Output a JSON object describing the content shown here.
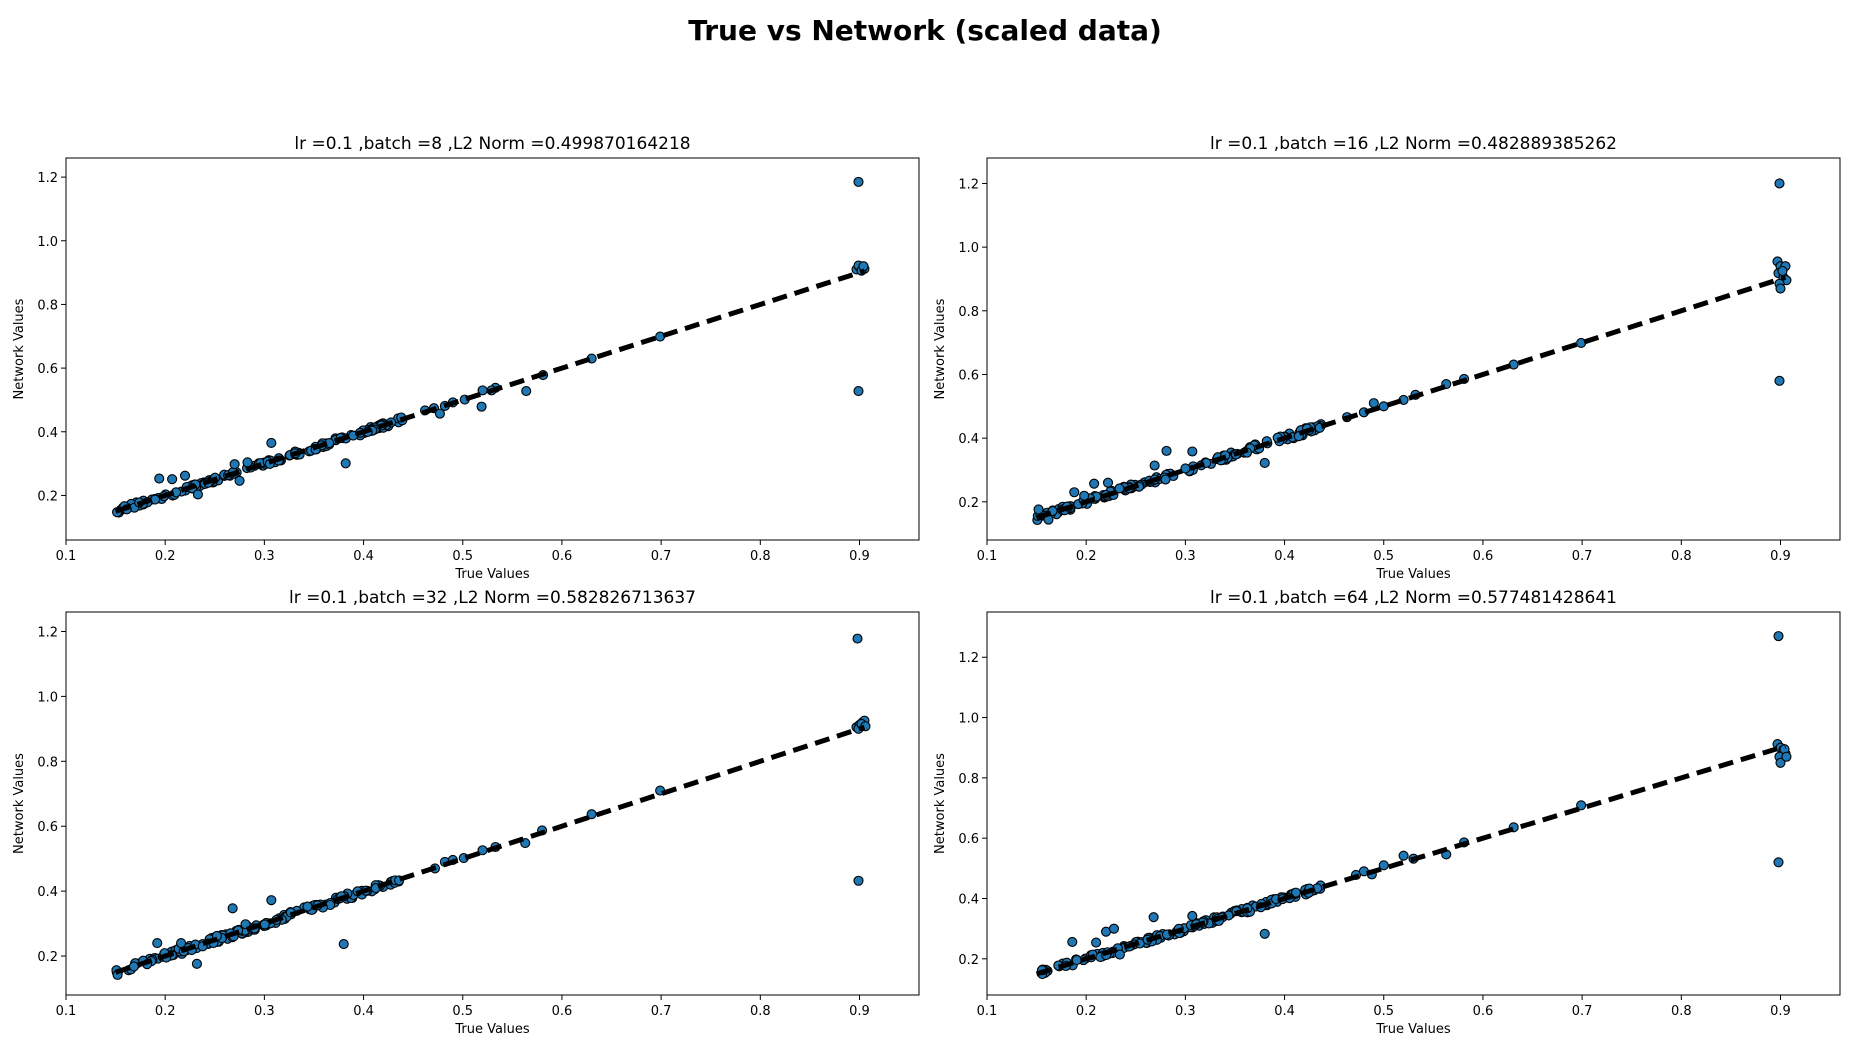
{
  "figure": {
    "suptitle": "True vs Network (scaled data)"
  },
  "chart_data": [
    {
      "type": "scatter",
      "title": "lr =0.1 ,batch =8 ,L2 Norm =0.499870164218",
      "xlabel": "True Values",
      "ylabel": "Network Values",
      "xlim": [
        0.1,
        0.96
      ],
      "ylim": [
        0.06,
        1.26
      ],
      "xticks": [
        "0.1",
        "0.2",
        "0.3",
        "0.4",
        "0.5",
        "0.6",
        "0.7",
        "0.8",
        "0.9"
      ],
      "yticks": [
        "0.2",
        "0.4",
        "0.6",
        "0.8",
        "1.0",
        "1.2"
      ],
      "reference_line": {
        "style": "dashed",
        "color": "#000000",
        "x": [
          0.15,
          0.905
        ],
        "y": [
          0.15,
          0.905
        ]
      },
      "marker_color": "#1f77b4",
      "outliers": [
        {
          "x": 0.899,
          "y": 1.185
        },
        {
          "x": 0.899,
          "y": 0.528
        },
        {
          "x": 0.382,
          "y": 0.301
        },
        {
          "x": 0.194,
          "y": 0.253
        },
        {
          "x": 0.207,
          "y": 0.251
        },
        {
          "x": 0.22,
          "y": 0.262
        },
        {
          "x": 0.233,
          "y": 0.203
        },
        {
          "x": 0.275,
          "y": 0.246
        },
        {
          "x": 0.307,
          "y": 0.365
        },
        {
          "x": 0.27,
          "y": 0.298
        },
        {
          "x": 0.283,
          "y": 0.304
        },
        {
          "x": 0.477,
          "y": 0.457
        },
        {
          "x": 0.519,
          "y": 0.479
        },
        {
          "x": 0.564,
          "y": 0.528
        },
        {
          "x": 0.529,
          "y": 0.53
        }
      ],
      "cluster": {
        "x_min": 0.15,
        "x_max": 0.44,
        "jitter": 0.008
      },
      "upper_points": [
        {
          "x": 0.462,
          "y": 0.467
        },
        {
          "x": 0.471,
          "y": 0.474
        },
        {
          "x": 0.482,
          "y": 0.481
        },
        {
          "x": 0.49,
          "y": 0.492
        },
        {
          "x": 0.502,
          "y": 0.501
        },
        {
          "x": 0.52,
          "y": 0.53
        },
        {
          "x": 0.533,
          "y": 0.538
        },
        {
          "x": 0.581,
          "y": 0.578
        },
        {
          "x": 0.63,
          "y": 0.63
        },
        {
          "x": 0.699,
          "y": 0.699
        }
      ],
      "end_cluster": [
        {
          "x": 0.897,
          "y": 0.91
        },
        {
          "x": 0.9,
          "y": 0.918
        },
        {
          "x": 0.903,
          "y": 0.915
        },
        {
          "x": 0.905,
          "y": 0.912
        },
        {
          "x": 0.899,
          "y": 0.922
        },
        {
          "x": 0.902,
          "y": 0.906
        },
        {
          "x": 0.904,
          "y": 0.92
        }
      ]
    },
    {
      "type": "scatter",
      "title": "lr =0.1 ,batch =16 ,L2 Norm =0.482889385262",
      "xlabel": "True Values",
      "ylabel": "Network Values",
      "xlim": [
        0.1,
        0.96
      ],
      "ylim": [
        0.08,
        1.28
      ],
      "xticks": [
        "0.1",
        "0.2",
        "0.3",
        "0.4",
        "0.5",
        "0.6",
        "0.7",
        "0.8",
        "0.9"
      ],
      "yticks": [
        "0.2",
        "0.4",
        "0.6",
        "0.8",
        "1.0",
        "1.2"
      ],
      "reference_line": {
        "style": "dashed",
        "color": "#000000",
        "x": [
          0.15,
          0.905
        ],
        "y": [
          0.15,
          0.905
        ]
      },
      "marker_color": "#1f77b4",
      "outliers": [
        {
          "x": 0.899,
          "y": 1.2
        },
        {
          "x": 0.899,
          "y": 0.58
        },
        {
          "x": 0.38,
          "y": 0.322
        },
        {
          "x": 0.269,
          "y": 0.314
        },
        {
          "x": 0.281,
          "y": 0.36
        },
        {
          "x": 0.307,
          "y": 0.358
        },
        {
          "x": 0.208,
          "y": 0.257
        },
        {
          "x": 0.222,
          "y": 0.26
        },
        {
          "x": 0.188,
          "y": 0.23
        },
        {
          "x": 0.198,
          "y": 0.219
        },
        {
          "x": 0.152,
          "y": 0.176
        },
        {
          "x": 0.162,
          "y": 0.144
        },
        {
          "x": 0.28,
          "y": 0.27
        },
        {
          "x": 0.321,
          "y": 0.322
        }
      ],
      "cluster": {
        "x_min": 0.15,
        "x_max": 0.44,
        "jitter": 0.01
      },
      "upper_points": [
        {
          "x": 0.463,
          "y": 0.466
        },
        {
          "x": 0.48,
          "y": 0.481
        },
        {
          "x": 0.49,
          "y": 0.51
        },
        {
          "x": 0.5,
          "y": 0.5
        },
        {
          "x": 0.52,
          "y": 0.52
        },
        {
          "x": 0.532,
          "y": 0.536
        },
        {
          "x": 0.563,
          "y": 0.57
        },
        {
          "x": 0.581,
          "y": 0.586
        },
        {
          "x": 0.631,
          "y": 0.631
        },
        {
          "x": 0.699,
          "y": 0.699
        }
      ],
      "end_cluster": [
        {
          "x": 0.897,
          "y": 0.955
        },
        {
          "x": 0.9,
          "y": 0.94
        },
        {
          "x": 0.905,
          "y": 0.94
        },
        {
          "x": 0.898,
          "y": 0.918
        },
        {
          "x": 0.903,
          "y": 0.905
        },
        {
          "x": 0.906,
          "y": 0.896
        },
        {
          "x": 0.899,
          "y": 0.885
        },
        {
          "x": 0.9,
          "y": 0.87
        },
        {
          "x": 0.902,
          "y": 0.925
        }
      ]
    },
    {
      "type": "scatter",
      "title": "lr =0.1 ,batch =32 ,L2 Norm =0.582826713637",
      "xlabel": "True Values",
      "ylabel": "Network Values",
      "xlim": [
        0.1,
        0.96
      ],
      "ylim": [
        0.08,
        1.26
      ],
      "xticks": [
        "0.1",
        "0.2",
        "0.3",
        "0.4",
        "0.5",
        "0.6",
        "0.7",
        "0.8",
        "0.9"
      ],
      "yticks": [
        "0.2",
        "0.4",
        "0.6",
        "0.8",
        "1.0",
        "1.2"
      ],
      "reference_line": {
        "style": "dashed",
        "color": "#000000",
        "x": [
          0.15,
          0.905
        ],
        "y": [
          0.15,
          0.905
        ]
      },
      "marker_color": "#1f77b4",
      "outliers": [
        {
          "x": 0.898,
          "y": 1.178
        },
        {
          "x": 0.899,
          "y": 0.432
        },
        {
          "x": 0.38,
          "y": 0.237
        },
        {
          "x": 0.232,
          "y": 0.176
        },
        {
          "x": 0.268,
          "y": 0.347
        },
        {
          "x": 0.307,
          "y": 0.372
        },
        {
          "x": 0.192,
          "y": 0.24
        },
        {
          "x": 0.216,
          "y": 0.24
        },
        {
          "x": 0.281,
          "y": 0.298
        },
        {
          "x": 0.563,
          "y": 0.548
        },
        {
          "x": 0.152,
          "y": 0.142
        }
      ],
      "cluster": {
        "x_min": 0.15,
        "x_max": 0.44,
        "jitter": 0.01
      },
      "upper_points": [
        {
          "x": 0.472,
          "y": 0.47
        },
        {
          "x": 0.482,
          "y": 0.49
        },
        {
          "x": 0.49,
          "y": 0.496
        },
        {
          "x": 0.501,
          "y": 0.502
        },
        {
          "x": 0.52,
          "y": 0.526
        },
        {
          "x": 0.533,
          "y": 0.536
        },
        {
          "x": 0.58,
          "y": 0.587
        },
        {
          "x": 0.63,
          "y": 0.637
        },
        {
          "x": 0.699,
          "y": 0.71
        }
      ],
      "end_cluster": [
        {
          "x": 0.897,
          "y": 0.905
        },
        {
          "x": 0.9,
          "y": 0.912
        },
        {
          "x": 0.903,
          "y": 0.92
        },
        {
          "x": 0.905,
          "y": 0.925
        },
        {
          "x": 0.899,
          "y": 0.9
        },
        {
          "x": 0.902,
          "y": 0.915
        },
        {
          "x": 0.906,
          "y": 0.908
        }
      ]
    },
    {
      "type": "scatter",
      "title": "lr =0.1 ,batch =64 ,L2 Norm =0.577481428641",
      "xlabel": "True Values",
      "ylabel": "Network Values",
      "xlim": [
        0.1,
        0.96
      ],
      "ylim": [
        0.08,
        1.35
      ],
      "xticks": [
        "0.1",
        "0.2",
        "0.3",
        "0.4",
        "0.5",
        "0.6",
        "0.7",
        "0.8",
        "0.9"
      ],
      "yticks": [
        "0.2",
        "0.4",
        "0.6",
        "0.8",
        "1.0",
        "1.2"
      ],
      "reference_line": {
        "style": "dashed",
        "color": "#000000",
        "x": [
          0.15,
          0.905
        ],
        "y": [
          0.15,
          0.905
        ]
      },
      "marker_color": "#1f77b4",
      "outliers": [
        {
          "x": 0.898,
          "y": 1.27
        },
        {
          "x": 0.898,
          "y": 0.52
        },
        {
          "x": 0.38,
          "y": 0.283
        },
        {
          "x": 0.186,
          "y": 0.256
        },
        {
          "x": 0.21,
          "y": 0.254
        },
        {
          "x": 0.22,
          "y": 0.29
        },
        {
          "x": 0.228,
          "y": 0.3
        },
        {
          "x": 0.268,
          "y": 0.338
        },
        {
          "x": 0.307,
          "y": 0.342
        },
        {
          "x": 0.563,
          "y": 0.546
        },
        {
          "x": 0.52,
          "y": 0.542
        },
        {
          "x": 0.234,
          "y": 0.214
        }
      ],
      "cluster": {
        "x_min": 0.15,
        "x_max": 0.44,
        "jitter": 0.009
      },
      "upper_points": [
        {
          "x": 0.472,
          "y": 0.478
        },
        {
          "x": 0.48,
          "y": 0.49
        },
        {
          "x": 0.488,
          "y": 0.48
        },
        {
          "x": 0.5,
          "y": 0.51
        },
        {
          "x": 0.53,
          "y": 0.532
        },
        {
          "x": 0.581,
          "y": 0.586
        },
        {
          "x": 0.631,
          "y": 0.636
        },
        {
          "x": 0.699,
          "y": 0.709
        }
      ],
      "end_cluster": [
        {
          "x": 0.897,
          "y": 0.912
        },
        {
          "x": 0.9,
          "y": 0.9
        },
        {
          "x": 0.903,
          "y": 0.893
        },
        {
          "x": 0.905,
          "y": 0.88
        },
        {
          "x": 0.899,
          "y": 0.87
        },
        {
          "x": 0.9,
          "y": 0.85
        },
        {
          "x": 0.904,
          "y": 0.895
        },
        {
          "x": 0.906,
          "y": 0.87
        }
      ]
    }
  ]
}
